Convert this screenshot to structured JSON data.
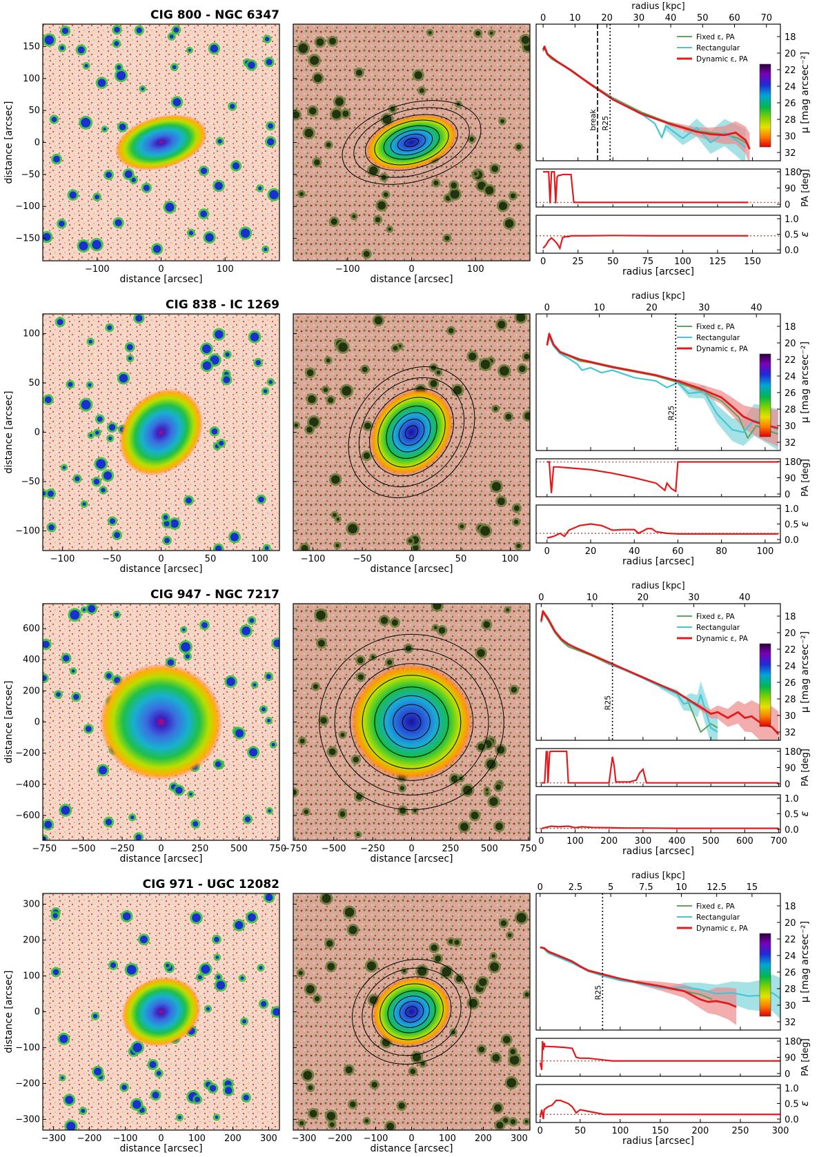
{
  "labels": {
    "dist_x": "distance [arcsec]",
    "dist_y": "distance [arcsec]",
    "radius_x": "radius [arcsec]",
    "radius_top": "radius [kpc]",
    "mu_y": "μ [mag arcsec⁻²]",
    "pa_y": "PA [deg]",
    "eps_y": "ε"
  },
  "legend": [
    "Fixed ε, PA",
    "Rectangular",
    "Dynamic ε, PA"
  ],
  "colors": {
    "fixed": "#5ea35e",
    "rect": "#45c6d6",
    "dyn": "#e31a1c",
    "rect_band": "#7fd6dc",
    "dyn_band": "#f08a8a",
    "sky": "#c9504a"
  },
  "chart_data": [
    {
      "type": "line",
      "title": "CIG 800  -  NGC 6347",
      "image_ticks": [
        -100,
        0,
        100
      ],
      "image_yticks": [
        -150,
        -100,
        -50,
        0,
        50,
        100,
        150
      ],
      "image_range": [
        -185,
        185
      ],
      "image_ellipticity": 0.45,
      "image_pa": 15,
      "radius_ticks": [
        0,
        25,
        50,
        75,
        100,
        125,
        150
      ],
      "radius_range": [
        -5,
        170
      ],
      "kpc_ticks": [
        0,
        10,
        20,
        30,
        40,
        50,
        60,
        70
      ],
      "kpc_per_arcsec": 0.4375,
      "mu_ticks": [
        18,
        20,
        22,
        24,
        26,
        28,
        30,
        32
      ],
      "mu_range": [
        33,
        16.5
      ],
      "colorbar_ticks": [
        20,
        22,
        24,
        26,
        28
      ],
      "vlines": [
        {
          "x": 39,
          "label": "break",
          "style": "dash"
        },
        {
          "x": 48,
          "label": "R25",
          "style": "dot"
        }
      ],
      "series": [
        {
          "name": "Fixed ε, PA",
          "x": [
            0,
            1,
            3,
            6,
            10,
            20,
            35,
            50,
            70,
            90,
            110,
            130,
            140,
            147
          ],
          "y": [
            19.8,
            19.4,
            20.2,
            20.7,
            21.1,
            22.1,
            23.8,
            25.4,
            27.1,
            28.4,
            29.4,
            29.8,
            30.3,
            31.0
          ]
        },
        {
          "name": "Rectangular",
          "x": [
            0,
            1,
            3,
            6,
            10,
            20,
            35,
            50,
            70,
            80,
            85,
            88,
            100,
            110,
            120,
            130,
            140,
            145
          ],
          "y": [
            19.8,
            19.2,
            20.0,
            20.6,
            21.0,
            22.0,
            23.9,
            25.5,
            27.3,
            28.5,
            30.2,
            28.8,
            30.3,
            29.0,
            30.8,
            29.6,
            30.7,
            31.4
          ]
        },
        {
          "name": "Dynamic ε, PA",
          "x": [
            0,
            1,
            3,
            6,
            10,
            20,
            35,
            50,
            70,
            90,
            110,
            120,
            130,
            138,
            145,
            148
          ],
          "y": [
            19.6,
            19.2,
            20.1,
            20.5,
            21.0,
            22.1,
            23.9,
            25.6,
            27.3,
            28.5,
            29.5,
            29.8,
            29.9,
            29.6,
            30.5,
            31.6
          ]
        }
      ],
      "pa": {
        "x": [
          0,
          2,
          4,
          5,
          6,
          8,
          9,
          10,
          11,
          12,
          14,
          16,
          18,
          20,
          22,
          30,
          60,
          100,
          147
        ],
        "y": [
          180,
          180,
          180,
          5,
          180,
          180,
          5,
          150,
          160,
          160,
          165,
          165,
          165,
          165,
          10,
          10,
          10,
          10,
          10
        ]
      },
      "eps": {
        "x": [
          0,
          2,
          4,
          6,
          8,
          10,
          12,
          14,
          16,
          18,
          20,
          30,
          50,
          80,
          110,
          147
        ],
        "y": [
          0.05,
          0.15,
          0.3,
          0.38,
          0.3,
          0.2,
          0.05,
          0.4,
          0.42,
          0.42,
          0.45,
          0.45,
          0.46,
          0.45,
          0.45,
          0.45
        ]
      },
      "eps_ref": 0.45,
      "pa_ref": 10
    },
    {
      "type": "line",
      "title": "CIG 838  -  IC 1269",
      "image_ticks": [
        -100,
        -50,
        0,
        50,
        100
      ],
      "image_yticks": [
        -100,
        -50,
        0,
        50,
        100
      ],
      "image_range": [
        -120,
        120
      ],
      "image_ellipticity": 0.2,
      "image_pa": 50,
      "radius_ticks": [
        0,
        20,
        40,
        60,
        80,
        100
      ],
      "radius_range": [
        -5,
        107
      ],
      "kpc_ticks": [
        0,
        10,
        20,
        30,
        40
      ],
      "kpc_per_arcsec": 0.4167,
      "mu_ticks": [
        18,
        20,
        22,
        24,
        26,
        28,
        30,
        32
      ],
      "mu_range": [
        33,
        16.5
      ],
      "colorbar_ticks": [
        18,
        20,
        22,
        24,
        26,
        28
      ],
      "vlines": [
        {
          "x": 59,
          "label": "R25",
          "style": "dot"
        }
      ],
      "series": [
        {
          "name": "Fixed ε, PA",
          "x": [
            0,
            1,
            3,
            6,
            10,
            15,
            20,
            30,
            40,
            50,
            60,
            70,
            80,
            88,
            92,
            96,
            100,
            106
          ],
          "y": [
            20.3,
            19.2,
            20.4,
            21.2,
            21.6,
            22.2,
            22.4,
            23.0,
            23.5,
            24.0,
            24.8,
            25.7,
            27.0,
            29.0,
            31.5,
            30.0,
            30.5,
            31.0
          ]
        },
        {
          "name": "Rectangular",
          "x": [
            0,
            1,
            3,
            6,
            10,
            14,
            16,
            20,
            25,
            30,
            40,
            50,
            55,
            60,
            65,
            72,
            78,
            85,
            90,
            95,
            100,
            106
          ],
          "y": [
            20.3,
            19.3,
            20.4,
            21.3,
            21.9,
            22.6,
            23.3,
            23.0,
            23.6,
            23.3,
            24.2,
            24.6,
            25.4,
            24.8,
            26.1,
            25.9,
            28.6,
            30.5,
            30.8,
            29.3,
            29.8,
            30.5
          ]
        },
        {
          "name": "Dynamic ε, PA",
          "x": [
            0,
            1,
            3,
            6,
            10,
            15,
            20,
            30,
            40,
            50,
            60,
            70,
            80,
            85,
            90,
            95,
            100,
            106
          ],
          "y": [
            20.3,
            18.9,
            20.2,
            21.1,
            21.5,
            22.0,
            22.3,
            22.9,
            23.4,
            23.9,
            24.6,
            25.5,
            26.6,
            27.7,
            28.9,
            29.5,
            29.9,
            30.3
          ]
        }
      ],
      "pa": {
        "x": [
          0,
          1,
          2,
          3,
          5,
          10,
          20,
          30,
          40,
          50,
          54,
          55,
          57,
          59,
          60,
          106
        ],
        "y": [
          178,
          178,
          5,
          150,
          150,
          145,
          135,
          115,
          90,
          60,
          20,
          60,
          30,
          15,
          178,
          178
        ]
      },
      "eps": {
        "x": [
          0,
          3,
          6,
          8,
          10,
          15,
          20,
          25,
          30,
          35,
          40,
          42,
          46,
          48,
          50,
          55,
          60,
          106
        ],
        "y": [
          0.05,
          0.1,
          0.2,
          0.1,
          0.3,
          0.45,
          0.5,
          0.45,
          0.3,
          0.32,
          0.32,
          0.2,
          0.35,
          0.35,
          0.25,
          0.2,
          0.18,
          0.18
        ]
      },
      "eps_ref": 0.2,
      "pa_ref": 178
    },
    {
      "type": "line",
      "title": "CIG 947  -  NGC 7217",
      "image_ticks": [
        -750,
        -500,
        -250,
        0,
        250,
        500,
        750
      ],
      "image_yticks": [
        -600,
        -400,
        -200,
        0,
        200,
        400,
        600
      ],
      "image_range": [
        -760,
        760
      ],
      "image_ellipticity": 0.05,
      "image_pa": 0,
      "radius_ticks": [
        0,
        100,
        200,
        300,
        400,
        500,
        600,
        700
      ],
      "radius_range": [
        -15,
        705
      ],
      "kpc_ticks": [
        0,
        10,
        20,
        30,
        40
      ],
      "kpc_per_arcsec": 0.0667,
      "mu_ticks": [
        18,
        20,
        22,
        24,
        26,
        28,
        30,
        32
      ],
      "mu_range": [
        33,
        16.5
      ],
      "colorbar_ticks": [
        18,
        20,
        22,
        24,
        26,
        28
      ],
      "vlines": [
        {
          "x": 210,
          "label": "R25",
          "style": "dot"
        }
      ],
      "series": [
        {
          "name": "Fixed ε, PA",
          "x": [
            0,
            5,
            20,
            40,
            60,
            80,
            100,
            150,
            200,
            250,
            300,
            350,
            400,
            430,
            450,
            470,
            500,
            520
          ],
          "y": [
            18.8,
            17.6,
            18.5,
            20.0,
            21.0,
            21.7,
            22.0,
            22.8,
            23.8,
            24.6,
            25.4,
            26.4,
            27.3,
            28.0,
            30.0,
            32.0,
            31.0,
            31.5
          ]
        },
        {
          "name": "Rectangular",
          "x": [
            0,
            5,
            20,
            40,
            60,
            80,
            100,
            150,
            200,
            250,
            300,
            350,
            400,
            420,
            440,
            460,
            470,
            500,
            520
          ],
          "y": [
            18.7,
            17.5,
            18.4,
            19.9,
            20.8,
            21.5,
            21.8,
            22.7,
            23.7,
            24.6,
            25.5,
            26.5,
            27.4,
            28.6,
            28.4,
            28.9,
            27.5,
            31.5,
            32.0
          ]
        },
        {
          "name": "Dynamic ε, PA",
          "x": [
            0,
            5,
            20,
            40,
            60,
            80,
            100,
            150,
            200,
            250,
            300,
            350,
            400,
            450,
            500,
            520,
            550,
            580,
            600,
            620,
            650,
            680,
            700
          ],
          "y": [
            18.6,
            17.4,
            18.3,
            19.8,
            20.8,
            21.4,
            21.8,
            22.7,
            23.6,
            24.5,
            25.4,
            26.3,
            27.2,
            28.5,
            29.8,
            29.6,
            30.3,
            29.6,
            30.3,
            30.1,
            31.0,
            31.4,
            32.3
          ]
        }
      ],
      "pa": {
        "x": [
          0,
          10,
          15,
          18,
          20,
          25,
          30,
          60,
          75,
          80,
          100,
          180,
          200,
          210,
          215,
          220,
          260,
          280,
          290,
          300,
          310,
          700
        ],
        "y": [
          5,
          5,
          178,
          178,
          5,
          178,
          180,
          180,
          180,
          5,
          5,
          5,
          5,
          150,
          100,
          10,
          10,
          20,
          60,
          80,
          5,
          5
        ]
      },
      "eps": {
        "x": [
          0,
          10,
          30,
          50,
          80,
          100,
          120,
          150,
          200,
          250,
          300,
          400,
          700
        ],
        "y": [
          0.02,
          0.05,
          0.1,
          0.08,
          0.1,
          0.05,
          0.08,
          0.06,
          0.05,
          0.04,
          0.04,
          0.03,
          0.03
        ]
      },
      "eps_ref": 0.03,
      "pa_ref": 5
    },
    {
      "type": "line",
      "title": "CIG 971  -  UGC 12082",
      "image_ticks": [
        -300,
        -200,
        -100,
        0,
        100,
        200,
        300
      ],
      "image_yticks": [
        -300,
        -200,
        -100,
        0,
        100,
        200,
        300
      ],
      "image_range": [
        -330,
        330
      ],
      "image_ellipticity": 0.15,
      "image_pa": 20,
      "radius_ticks": [
        0,
        50,
        100,
        150,
        200,
        250,
        300
      ],
      "radius_range": [
        -5,
        300
      ],
      "kpc_ticks": [
        0.0,
        2.5,
        5.0,
        7.5,
        10.0,
        12.5,
        15.0
      ],
      "kpc_per_arcsec": 0.0567,
      "mu_ticks": [
        18,
        20,
        22,
        24,
        26,
        28,
        30,
        32
      ],
      "mu_range": [
        33,
        16.5
      ],
      "colorbar_ticks": [
        22,
        24,
        26,
        28
      ],
      "vlines": [
        {
          "x": 78,
          "label": "R25",
          "style": "dot"
        }
      ],
      "series": [
        {
          "name": "Fixed ε, PA",
          "x": [
            0,
            5,
            10,
            20,
            30,
            40,
            50,
            60,
            80,
            100,
            120,
            150,
            180,
            200,
            215
          ],
          "y": [
            23.0,
            23.2,
            23.6,
            24.0,
            24.5,
            24.9,
            25.3,
            25.8,
            26.3,
            26.9,
            27.3,
            27.8,
            28.3,
            28.7,
            29.3
          ]
        },
        {
          "name": "Rectangular",
          "x": [
            0,
            5,
            10,
            20,
            30,
            40,
            50,
            60,
            80,
            100,
            120,
            140,
            150,
            160,
            180,
            200,
            220,
            240,
            260,
            280,
            290,
            300
          ],
          "y": [
            23.0,
            23.2,
            23.7,
            24.1,
            24.5,
            24.9,
            25.4,
            25.9,
            26.5,
            27.0,
            27.3,
            27.7,
            27.9,
            28.0,
            27.8,
            28.1,
            28.6,
            28.5,
            28.9,
            28.8,
            28.5,
            29.2
          ]
        },
        {
          "name": "Dynamic ε, PA",
          "x": [
            0,
            5,
            10,
            20,
            30,
            40,
            50,
            60,
            80,
            100,
            120,
            150,
            180,
            200,
            210,
            220,
            235,
            245
          ],
          "y": [
            23.0,
            23.1,
            23.5,
            23.9,
            24.3,
            24.7,
            25.3,
            25.8,
            26.3,
            26.8,
            27.2,
            27.7,
            28.3,
            29.3,
            29.6,
            29.5,
            29.8,
            30.2
          ]
        }
      ],
      "pa": {
        "x": [
          0,
          2,
          3,
          4,
          5,
          6,
          10,
          20,
          30,
          40,
          45,
          50,
          60,
          80,
          90,
          100,
          150,
          200,
          300
        ],
        "y": [
          60,
          20,
          180,
          130,
          170,
          150,
          150,
          148,
          145,
          140,
          90,
          85,
          85,
          75,
          70,
          70,
          70,
          70,
          70
        ]
      },
      "eps": {
        "x": [
          0,
          2,
          4,
          5,
          10,
          15,
          20,
          25,
          30,
          35,
          40,
          45,
          50,
          60,
          80,
          100,
          300
        ],
        "y": [
          0.05,
          0.3,
          0.0,
          0.3,
          0.4,
          0.45,
          0.6,
          0.6,
          0.55,
          0.5,
          0.4,
          0.2,
          0.3,
          0.25,
          0.15,
          0.15,
          0.15
        ]
      },
      "eps_ref": 0.15,
      "pa_ref": 70
    }
  ]
}
